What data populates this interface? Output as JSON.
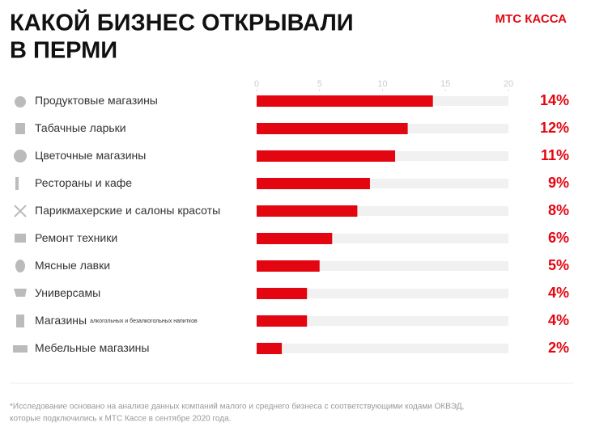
{
  "chart_data": {
    "type": "bar",
    "orientation": "horizontal",
    "title": [
      "КАКОЙ БИЗНЕС ОТКРЫВАЛИ",
      "В ПЕРМИ"
    ],
    "brand": "МТС КАССА",
    "categories": [
      "Продуктовые магазины",
      "Табачные ларьки",
      "Цветочные магазины",
      "Рестораны и кафе",
      "Парикмахерские и салоны красоты",
      "Ремонт техники",
      "Мясные лавки",
      "Универсамы",
      "Магазины",
      "Мебельные магазины"
    ],
    "category_subtitles": [
      null,
      null,
      null,
      null,
      null,
      null,
      null,
      null,
      "алкогольных и безалкогольных напитков",
      null
    ],
    "values": [
      14,
      12,
      11,
      9,
      8,
      6,
      5,
      4,
      4,
      2
    ],
    "value_labels": [
      "14%",
      "12%",
      "11%",
      "9%",
      "8%",
      "6%",
      "5%",
      "4%",
      "4%",
      "2%"
    ],
    "color": "#e30611",
    "xlim": [
      0,
      20
    ],
    "xticks": [
      0,
      5,
      10,
      15,
      20
    ],
    "footnote": [
      "*Исследование основано на анализе данных компаний малого и среднего бизнеса с соответствующими кодами ОКВЭД,",
      "которые подключились к МТС Кассе в сентябре 2020 года."
    ]
  }
}
